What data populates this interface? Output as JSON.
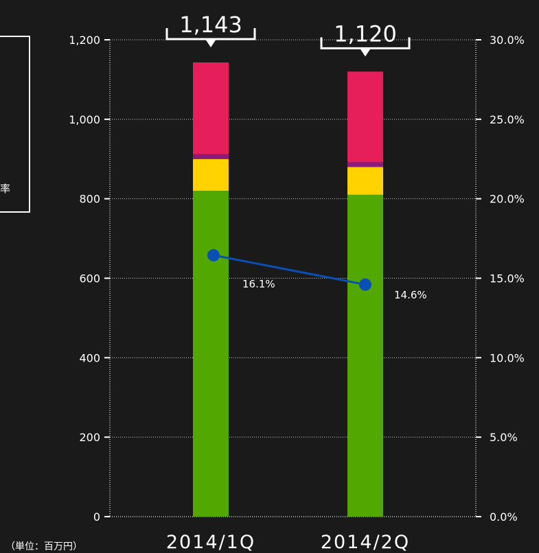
{
  "legend": {
    "fragment": "率"
  },
  "unit_note": "（単位：百万円）",
  "chart_data": {
    "type": "bar",
    "stacked": true,
    "categories": [
      "2014/1Q",
      "2014/2Q"
    ],
    "series": [
      {
        "color": "#52a800",
        "values": [
          820,
          810
        ]
      },
      {
        "color": "#ffd200",
        "values": [
          80,
          70
        ]
      },
      {
        "color": "#8b1a7a",
        "values": [
          12,
          12
        ]
      },
      {
        "color": "#e61e5a",
        "values": [
          231,
          228
        ]
      }
    ],
    "totals": [
      1143,
      1120
    ],
    "total_labels": [
      "1,143",
      "1,120"
    ],
    "line_series": {
      "color": "#0a50b4",
      "values": [
        16.1,
        14.6
      ],
      "labels": [
        "16.1%",
        "14.6%"
      ]
    },
    "y_left": {
      "range": [
        0,
        1200
      ],
      "ticks": [
        0,
        200,
        400,
        600,
        800,
        1000,
        1200
      ],
      "tick_labels": [
        "0",
        "200",
        "400",
        "600",
        "800",
        "1,000",
        "1,200"
      ]
    },
    "y_right": {
      "range": [
        0,
        30
      ],
      "ticks": [
        0,
        5,
        10,
        15,
        20,
        25,
        30
      ],
      "tick_labels": [
        "0.0%",
        "5.0%",
        "10.0%",
        "15.0%",
        "20.0%",
        "25.0%",
        "30.0%"
      ]
    },
    "grid": true
  }
}
